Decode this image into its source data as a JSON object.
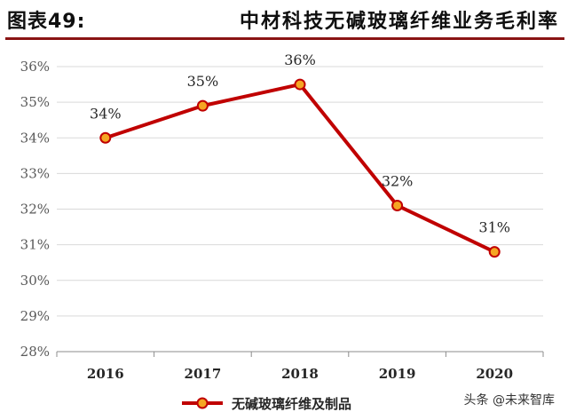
{
  "header": {
    "figure_label": "图表49:",
    "title": "中材科技无碱玻璃纤维业务毛利率"
  },
  "watermark": "头条 @未来智库",
  "colors": {
    "line": "#c00000",
    "marker_fill": "#f5a623",
    "marker_stroke": "#c00000",
    "grid": "#d9d9d9",
    "axis_text": "#595959",
    "rule": "#8a1414"
  },
  "chart_data": {
    "type": "line",
    "categories": [
      "2016",
      "2017",
      "2018",
      "2019",
      "2020"
    ],
    "series": [
      {
        "name": "无碱玻璃纤维及制品",
        "values": [
          34.0,
          34.9,
          35.5,
          32.1,
          30.8
        ],
        "labels": [
          "34%",
          "35%",
          "36%",
          "32%",
          "31%"
        ]
      }
    ],
    "yticks": [
      "28%",
      "29%",
      "30%",
      "31%",
      "32%",
      "33%",
      "34%",
      "35%",
      "36%"
    ],
    "ylim": [
      28,
      36
    ],
    "grid": true,
    "legend_position": "bottom"
  }
}
